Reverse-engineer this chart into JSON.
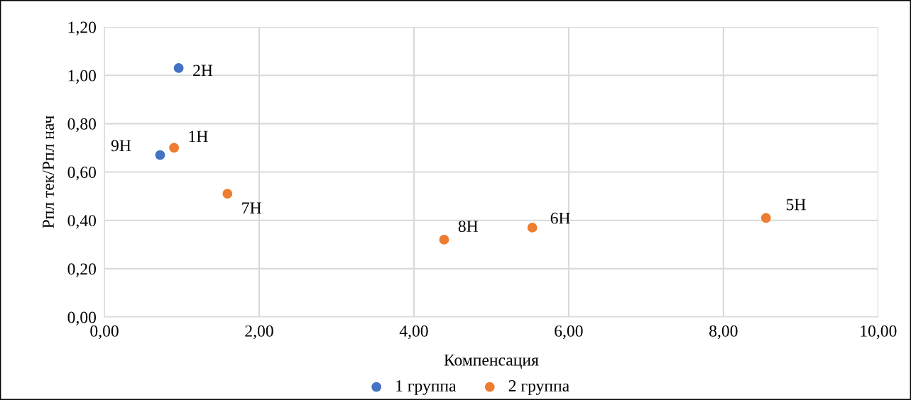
{
  "chart_data": {
    "type": "scatter",
    "xlabel": "Компенсация",
    "ylabel": "Рпл тек/Рпл нач",
    "series": [
      {
        "name": "1 группа",
        "color": "#4472c4",
        "x": [
          0.96,
          0.72
        ],
        "values": [
          1.03,
          0.67
        ]
      },
      {
        "name": "2 группа",
        "color": "#ed7d31",
        "x": [
          0.9,
          1.59,
          4.39,
          5.53,
          8.55
        ],
        "values": [
          0.7,
          0.51,
          0.32,
          0.37,
          0.41
        ]
      }
    ],
    "annotations": [
      {
        "text": "2Н",
        "x": 0.96,
        "y": 1.03
      },
      {
        "text": "9Н",
        "x": 0.72,
        "y": 0.67
      },
      {
        "text": "1Н",
        "x": 0.9,
        "y": 0.7
      },
      {
        "text": "7Н",
        "x": 1.59,
        "y": 0.51
      },
      {
        "text": "8Н",
        "x": 4.39,
        "y": 0.32
      },
      {
        "text": "6Н",
        "x": 5.53,
        "y": 0.37
      },
      {
        "text": "5Н",
        "x": 8.55,
        "y": 0.41
      }
    ],
    "xlim": [
      0,
      10
    ],
    "ylim": [
      0,
      1.2
    ],
    "xticks": [
      {
        "value": 0,
        "label": "0,00"
      },
      {
        "value": 2,
        "label": "2,00"
      },
      {
        "value": 4,
        "label": "4,00"
      },
      {
        "value": 6,
        "label": "6,00"
      },
      {
        "value": 8,
        "label": "8,00"
      },
      {
        "value": 10,
        "label": "10,00"
      }
    ],
    "yticks": [
      {
        "value": 0,
        "label": "0,00"
      },
      {
        "value": 0.2,
        "label": "0,20"
      },
      {
        "value": 0.4,
        "label": "0,40"
      },
      {
        "value": 0.6,
        "label": "0,60"
      },
      {
        "value": 0.8,
        "label": "0,80"
      },
      {
        "value": 1.0,
        "label": "1,00"
      },
      {
        "value": 1.2,
        "label": "1,20"
      }
    ],
    "grid": true,
    "legend": "bottom",
    "marker": "circle"
  }
}
